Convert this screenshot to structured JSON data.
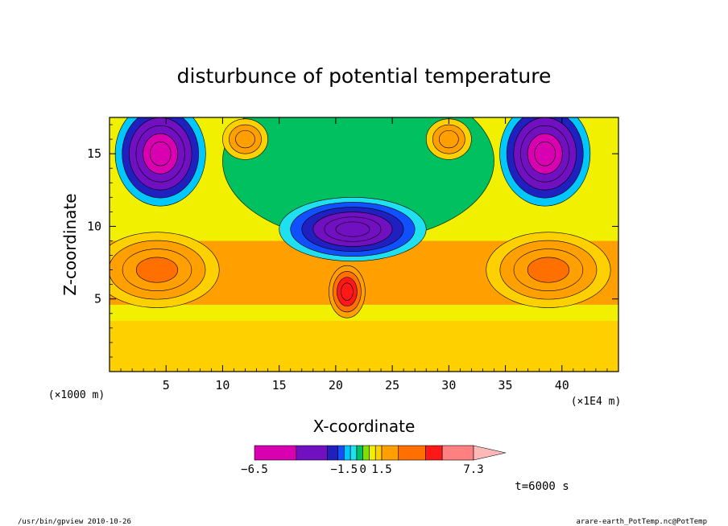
{
  "chart_data": {
    "type": "heatmap",
    "title": "disturbunce of potential temperature",
    "xlabel": "X-coordinate",
    "ylabel": "Z-coordinate",
    "x_unit_label": "(×1E4 m)",
    "y_unit_label": "(×1000 m)",
    "xlim": [
      0,
      45
    ],
    "ylim": [
      0,
      17.5
    ],
    "x_ticks": [
      "5",
      "10",
      "15",
      "20",
      "25",
      "30",
      "35",
      "40"
    ],
    "y_ticks": [
      "5",
      "10",
      "15"
    ],
    "grid": false,
    "colorbar": {
      "tick_labels": [
        "−6.5",
        "−1.5",
        "0",
        "1.5",
        "7.3"
      ],
      "levels": [
        -6.5,
        -4.5,
        -3.0,
        -2.0,
        -1.5,
        -1.0,
        -0.5,
        0.0,
        0.5,
        1.0,
        1.5,
        2.5,
        3.5,
        5.0,
        7.3
      ],
      "colors": [
        "#d800b0",
        "#7010c0",
        "#2020c0",
        "#1050ff",
        "#00c8ff",
        "#20e0f0",
        "#00c060",
        "#80e000",
        "#f0f000",
        "#ffd000",
        "#ffa000",
        "#ff7000",
        "#ff1818",
        "#ff8080",
        "#ffb8b8"
      ],
      "extend": "max"
    },
    "features": [
      {
        "x": 4.5,
        "z": 15.0,
        "value": -6.0
      },
      {
        "x": 38.5,
        "z": 15.0,
        "value": -6.0
      },
      {
        "x": 21.5,
        "z": 9.8,
        "value": -4.5
      },
      {
        "x": 4.2,
        "z": 7.0,
        "value": 2.8
      },
      {
        "x": 38.8,
        "z": 7.0,
        "value": 2.8
      },
      {
        "x": 21.0,
        "z": 5.5,
        "value": 4.5
      },
      {
        "x": 12.0,
        "z": 16.0,
        "value": 1.8
      },
      {
        "x": 30.0,
        "z": 16.0,
        "value": 1.8
      }
    ],
    "time_label": "t=6000 s"
  },
  "footer": {
    "left": "/usr/bin/gpview  2010-10-26",
    "right": "arare-earth_PotTemp.nc@PotTemp"
  }
}
